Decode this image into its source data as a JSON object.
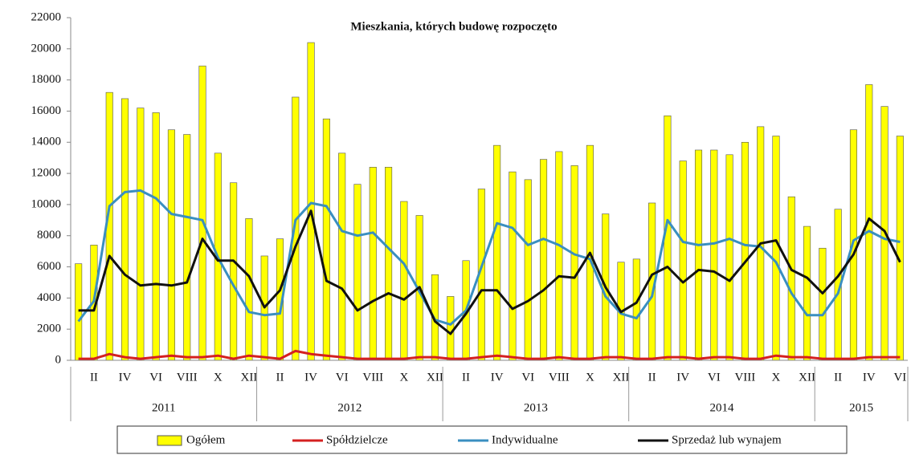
{
  "chart_data": {
    "type": "bar_line",
    "title": "Mieszkania, których budowę rozpoczęto",
    "categories": [
      null,
      "II",
      null,
      "IV",
      null,
      "VI",
      null,
      "VIII",
      null,
      "X",
      null,
      "XII",
      null,
      "II",
      null,
      "IV",
      null,
      "VI",
      null,
      "VIII",
      null,
      "X",
      null,
      "XII",
      null,
      "II",
      null,
      "IV",
      null,
      "VI",
      null,
      "VIII",
      null,
      "X",
      null,
      "XII",
      null,
      "II",
      null,
      "IV",
      null,
      "VI",
      null,
      "VIII",
      null,
      "X",
      null,
      "XII",
      null,
      "II",
      null,
      "IV",
      null,
      "VI"
    ],
    "years": [
      "2011",
      "2012",
      "2013",
      "2014",
      "2015"
    ],
    "series": [
      {
        "name": "Ogółem",
        "kind": "bar",
        "color": "#ffff00",
        "values": [
          6200,
          7400,
          17200,
          16800,
          16200,
          15900,
          14800,
          14500,
          18900,
          13300,
          11400,
          9100,
          6700,
          7800,
          16900,
          20400,
          15500,
          13300,
          11300,
          12400,
          12400,
          10200,
          9300,
          5500,
          4100,
          6400,
          11000,
          13800,
          12100,
          11600,
          12900,
          13400,
          12500,
          13800,
          9400,
          6300,
          6500,
          10100,
          15700,
          12800,
          13500,
          13500,
          13200,
          14000,
          15000,
          14400,
          10500,
          8600,
          7200,
          9700,
          14800,
          17700,
          16300,
          14400
        ]
      },
      {
        "name": "Spółdzielcze",
        "kind": "line",
        "color": "#d42020",
        "values": [
          100,
          100,
          400,
          200,
          100,
          200,
          300,
          200,
          200,
          300,
          100,
          300,
          200,
          100,
          600,
          400,
          300,
          200,
          100,
          100,
          100,
          100,
          200,
          200,
          100,
          100,
          200,
          300,
          200,
          100,
          100,
          200,
          100,
          100,
          200,
          200,
          100,
          100,
          200,
          200,
          100,
          200,
          200,
          100,
          100,
          300,
          200,
          200,
          100,
          100,
          100,
          200,
          200,
          200
        ]
      },
      {
        "name": "Indywidualne",
        "kind": "line",
        "color": "#3a8fc0",
        "values": [
          2500,
          3800,
          9900,
          10800,
          10900,
          10400,
          9400,
          9200,
          9000,
          6600,
          4800,
          3100,
          2900,
          3000,
          9000,
          10100,
          9900,
          8300,
          8000,
          8200,
          7200,
          6200,
          4400,
          2600,
          2300,
          3200,
          6000,
          8800,
          8500,
          7400,
          7800,
          7400,
          6800,
          6500,
          4100,
          3000,
          2700,
          4100,
          9000,
          7600,
          7400,
          7500,
          7800,
          7400,
          7300,
          6300,
          4300,
          2900,
          2900,
          4300,
          7700,
          8300,
          7800,
          7600
        ]
      },
      {
        "name": "Sprzedaż lub wynajem",
        "kind": "line",
        "color": "#111111",
        "values": [
          3200,
          3200,
          6700,
          5500,
          4800,
          4900,
          4800,
          5000,
          7800,
          6400,
          6400,
          5400,
          3400,
          4500,
          7300,
          9600,
          5100,
          4600,
          3200,
          3800,
          4300,
          3900,
          4700,
          2500,
          1700,
          3000,
          4500,
          4500,
          3300,
          3800,
          4500,
          5400,
          5300,
          6900,
          4700,
          3100,
          3700,
          5500,
          6000,
          5000,
          5800,
          5700,
          5100,
          6300,
          7500,
          7700,
          5800,
          5300,
          4300,
          5400,
          6800,
          9100,
          8300,
          6300
        ]
      }
    ],
    "ylim": [
      0,
      22000
    ],
    "yticks": [
      0,
      2000,
      4000,
      6000,
      8000,
      10000,
      12000,
      14000,
      16000,
      18000,
      20000,
      22000
    ],
    "grid": false,
    "legend": "bottom"
  }
}
